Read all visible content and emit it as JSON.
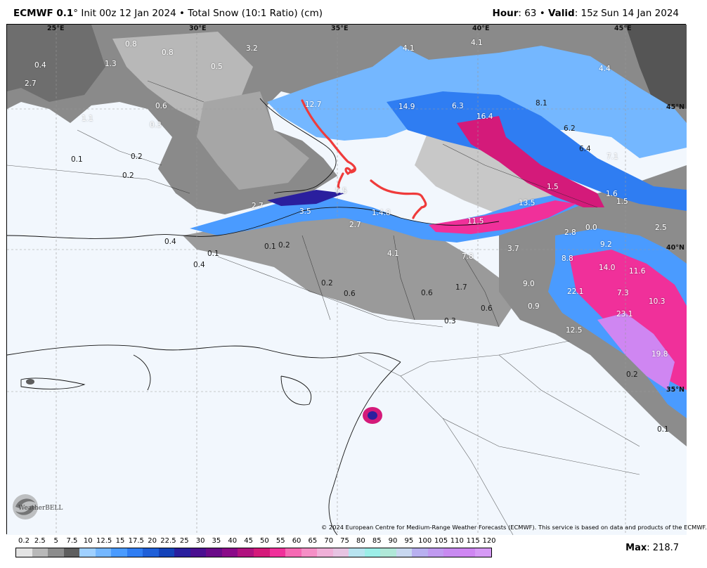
{
  "header": {
    "model": "ECMWF 0.1",
    "degree": "°",
    "init": " Init 00z 12 Jan 2024",
    "bullet": " • ",
    "product": "Total Snow (10:1 Ratio) (cm)",
    "hour_label": "Hour",
    "hour_value": ": 63",
    "valid_label": "Valid",
    "valid_value": ": 15z Sun 14 Jan 2024"
  },
  "coords": [
    "25°E",
    "30°E",
    "35°E",
    "40°E",
    "45°E",
    "45°N",
    "40°N",
    "35°N"
  ],
  "labels": [
    "0.8",
    "0.8",
    "3.2",
    "4.1",
    "4.1",
    "4.4",
    "0.4",
    "1.3",
    "0.5",
    "2.7",
    "12.7",
    "14.9",
    "6.3",
    "16.4",
    "8.1",
    "0.6",
    "0.3",
    "1.1",
    "6.2",
    "6.4",
    "0.1",
    "0.2",
    "7.1",
    "0.2",
    "5.5",
    "1.5",
    "1.6",
    "1.5",
    "2.7",
    "3.5",
    "1.4.8",
    "13.5",
    "2.5",
    "11.5",
    "2.7",
    "2.8",
    "0.0",
    "0.4",
    "0.1",
    "0.2",
    "9.2",
    "0.1",
    "4.1",
    "3.7",
    "0.4",
    "7.8",
    "8.8",
    "14.0",
    "11.6",
    "0.2",
    "9.0",
    "0.6",
    "0.6",
    "1.7",
    "22.1",
    "7.3",
    "0.9",
    "0.6",
    "10.3",
    "0.3",
    "23.1",
    "12.5",
    "19.8",
    "0.2",
    "0.1"
  ],
  "credit": "© 2024 European Centre for Medium-Range Weather Forecasts (ECMWF). This service is based on data and products of the ECMWF.",
  "logo": {
    "text": "WeatherBELL"
  },
  "colorbar": {
    "ticks": [
      "0.2",
      "2.5",
      "5",
      "7.5",
      "10",
      "12.5",
      "15",
      "17.5",
      "20",
      "22.5",
      "25",
      "30",
      "35",
      "40",
      "45",
      "50",
      "55",
      "60",
      "65",
      "70",
      "75",
      "80",
      "85",
      "90",
      "95",
      "100",
      "105",
      "110",
      "115",
      "120"
    ],
    "colors": [
      "#e4e4e4",
      "#b8b8b8",
      "#8c8c8c",
      "#5e5e5e",
      "#9fd0ff",
      "#74b7ff",
      "#4a9bff",
      "#2f7df2",
      "#1f5fd8",
      "#1442b8",
      "#2a1f9e",
      "#4a0f90",
      "#6a0a88",
      "#8a0a88",
      "#b0127f",
      "#d41a7a",
      "#f0309a",
      "#f569b3",
      "#f58fc6",
      "#f0b0d8",
      "#e7c4e2",
      "#b8e4f0",
      "#9ceee8",
      "#b0e8d8",
      "#c8d8f0",
      "#b8b0f0",
      "#c09af0",
      "#c88af0",
      "#cf86f2",
      "#d69af5"
    ],
    "max_label": "Max",
    "max_value": ": 218.7"
  },
  "colors": {
    "land_bg": "#f2f7fd",
    "track": "#ef3b3b"
  }
}
